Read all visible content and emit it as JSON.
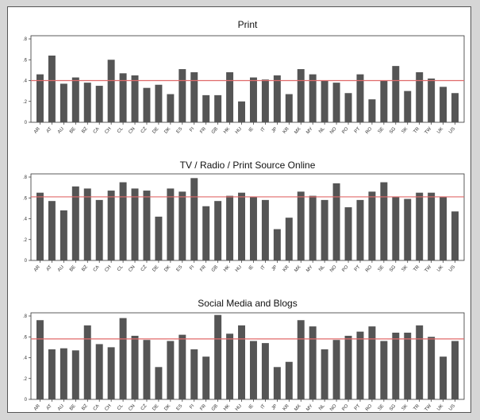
{
  "chart_data": [
    {
      "type": "bar",
      "title": "Print",
      "categories": [
        "AR",
        "AT",
        "AU",
        "BE",
        "BZ",
        "CA",
        "CH",
        "CL",
        "CN",
        "CZ",
        "DE",
        "DK",
        "ES",
        "FI",
        "FR",
        "GB",
        "HK",
        "HU",
        "IE",
        "IT",
        "JP",
        "KR",
        "MX",
        "MY",
        "NL",
        "NO",
        "PO",
        "PT",
        "RO",
        "SE",
        "SG",
        "SK",
        "TR",
        "TW",
        "UK",
        "US"
      ],
      "values": [
        0.46,
        0.64,
        0.37,
        0.43,
        0.38,
        0.35,
        0.6,
        0.47,
        0.45,
        0.33,
        0.36,
        0.27,
        0.51,
        0.48,
        0.26,
        0.26,
        0.48,
        0.2,
        0.43,
        0.41,
        0.45,
        0.27,
        0.51,
        0.46,
        0.4,
        0.38,
        0.28,
        0.46,
        0.22,
        0.4,
        0.54,
        0.3,
        0.48,
        0.42,
        0.34,
        0.28
      ],
      "reference_line": 0.4,
      "ylim": [
        0,
        0.8
      ],
      "yticks": [
        "0",
        ".2",
        ".4",
        ".6",
        ".8"
      ]
    },
    {
      "type": "bar",
      "title": "TV / Radio / Print Source Online",
      "categories": [
        "AR",
        "AT",
        "AU",
        "BE",
        "BZ",
        "CA",
        "CH",
        "CL",
        "CN",
        "CZ",
        "DE",
        "DK",
        "ES",
        "FI",
        "FR",
        "GB",
        "HK",
        "HU",
        "IE",
        "IT",
        "JP",
        "KR",
        "MX",
        "MY",
        "NL",
        "NO",
        "PO",
        "PT",
        "RO",
        "SE",
        "SG",
        "SK",
        "TR",
        "TW",
        "UK",
        "US"
      ],
      "values": [
        0.65,
        0.57,
        0.48,
        0.71,
        0.69,
        0.58,
        0.67,
        0.75,
        0.69,
        0.67,
        0.42,
        0.69,
        0.66,
        0.79,
        0.52,
        0.57,
        0.62,
        0.65,
        0.61,
        0.58,
        0.3,
        0.41,
        0.66,
        0.62,
        0.58,
        0.74,
        0.51,
        0.58,
        0.66,
        0.75,
        0.61,
        0.59,
        0.65,
        0.65,
        0.61,
        0.47
      ],
      "reference_line": 0.61,
      "ylim": [
        0,
        0.8
      ],
      "yticks": [
        "0",
        ".2",
        ".4",
        ".6",
        ".8"
      ]
    },
    {
      "type": "bar",
      "title": "Social Media and Blogs",
      "categories": [
        "AR",
        "AT",
        "AU",
        "BE",
        "BZ",
        "CA",
        "CH",
        "CL",
        "CN",
        "CZ",
        "DE",
        "DK",
        "ES",
        "FI",
        "FR",
        "GB",
        "HK",
        "HU",
        "IE",
        "IT",
        "JP",
        "KR",
        "MX",
        "MY",
        "NL",
        "NO",
        "PO",
        "PT",
        "RO",
        "SE",
        "SG",
        "SK",
        "TR",
        "TW",
        "UK",
        "US"
      ],
      "values": [
        0.76,
        0.48,
        0.49,
        0.47,
        0.71,
        0.53,
        0.5,
        0.78,
        0.61,
        0.57,
        0.31,
        0.56,
        0.62,
        0.48,
        0.41,
        0.81,
        0.63,
        0.71,
        0.56,
        0.54,
        0.31,
        0.36,
        0.76,
        0.7,
        0.48,
        0.57,
        0.61,
        0.65,
        0.7,
        0.56,
        0.64,
        0.64,
        0.71,
        0.6,
        0.41,
        0.56
      ],
      "reference_line": 0.58,
      "ylim": [
        0,
        0.8
      ],
      "yticks": [
        "0",
        ".2",
        ".4",
        ".6",
        ".8"
      ]
    }
  ],
  "colors": {
    "bar": "#555555",
    "reference_line": "#e06a6a",
    "axis": "#333333"
  }
}
